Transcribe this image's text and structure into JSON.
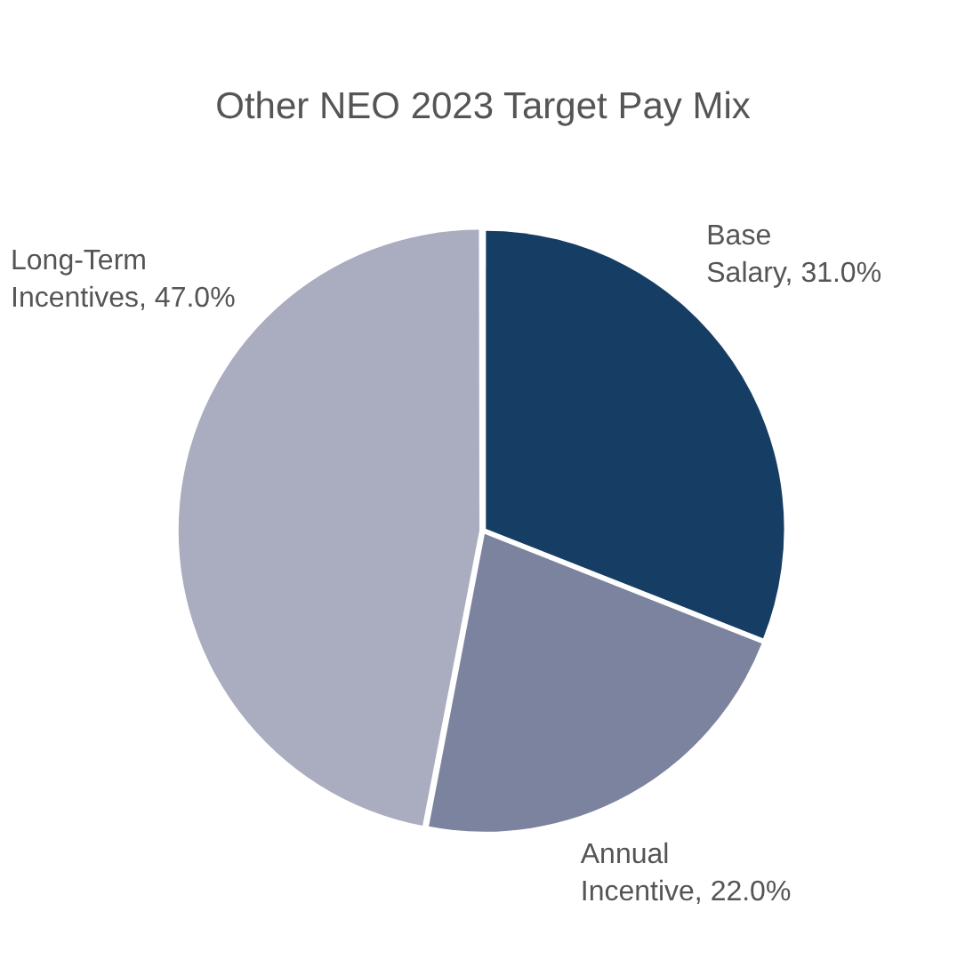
{
  "chart_data": {
    "type": "pie",
    "title": "Other NEO 2023 Target Pay Mix",
    "categories": [
      "Base Salary",
      "Annual Incentive",
      "Long-Term Incentives"
    ],
    "values": [
      31,
      22,
      47
    ],
    "value_labels": [
      "31.0%",
      "22.0%",
      "47.0%"
    ],
    "colors": [
      "#163d63",
      "#7b839e",
      "#a9adbf"
    ],
    "legend": false
  }
}
